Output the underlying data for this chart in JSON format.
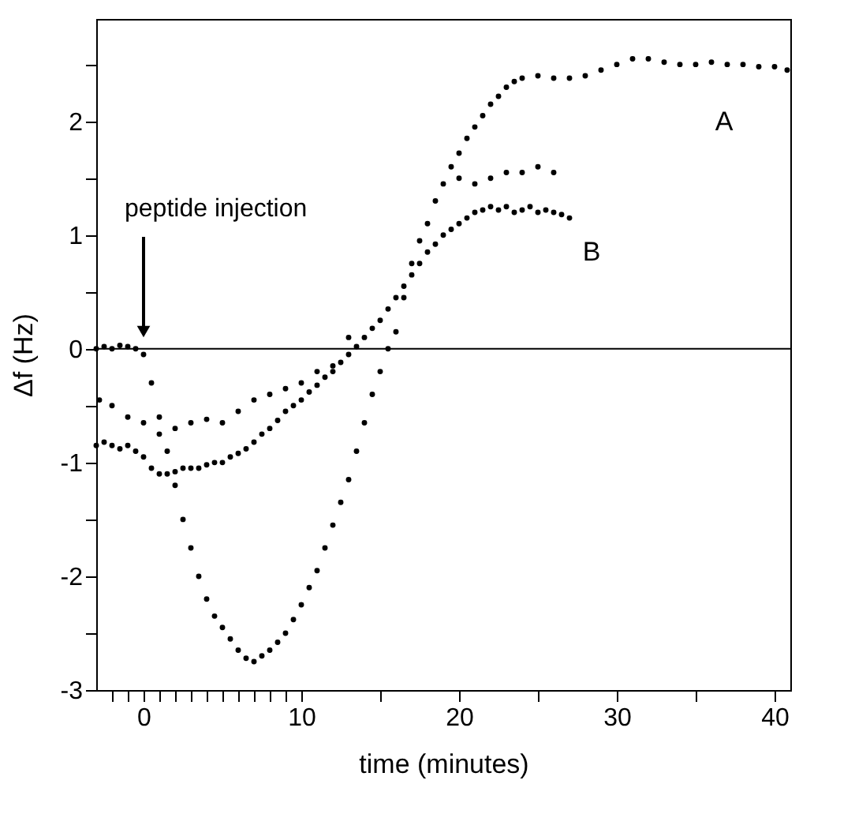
{
  "chart_data": {
    "type": "scatter",
    "xlabel": "time (minutes)",
    "ylabel": "Δf (Hz)",
    "xlim": [
      -3,
      41
    ],
    "ylim": [
      -3,
      2.9
    ],
    "xticks": [
      {
        "value": -2,
        "label": null
      },
      {
        "value": -1,
        "label": null
      },
      0,
      {
        "value": 1,
        "label": null
      },
      {
        "value": 2,
        "label": null
      },
      {
        "value": 3,
        "label": null
      },
      {
        "value": 4,
        "label": null
      },
      {
        "value": 5,
        "label": null
      },
      {
        "value": 6,
        "label": null
      },
      {
        "value": 7,
        "label": null
      },
      {
        "value": 8,
        "label": null
      },
      {
        "value": 9,
        "label": null
      },
      10,
      {
        "value": 15,
        "label": null
      },
      20,
      {
        "value": 25,
        "label": null
      },
      30,
      {
        "value": 35,
        "label": null
      },
      40
    ],
    "yticks": [
      -3,
      {
        "value": -2.5,
        "label": null
      },
      -2,
      {
        "value": -1.5,
        "label": null
      },
      -1,
      {
        "value": -0.5,
        "label": null
      },
      0,
      {
        "value": 0.5,
        "label": null
      },
      1,
      {
        "value": 1.5,
        "label": null
      },
      2,
      {
        "value": 2.5,
        "label": null
      }
    ],
    "grid": false,
    "legend": false,
    "marker": "circle",
    "ref_lines": [
      {
        "axis": "y",
        "value": 0,
        "color": "#000000"
      }
    ],
    "annotations": [
      "peptide injection"
    ],
    "series": [
      {
        "name": "A",
        "color": "#000000",
        "x": [
          -3,
          -2.5,
          -2,
          -1.5,
          -1,
          -0.5,
          0,
          0.5,
          1,
          1.5,
          2,
          2.5,
          3,
          3.5,
          4,
          4.5,
          5,
          5.5,
          6,
          6.5,
          7,
          7.5,
          8,
          8.5,
          9,
          9.5,
          10,
          10.5,
          11,
          11.5,
          12,
          12.5,
          13,
          13.5,
          14,
          14.5,
          15,
          15.5,
          16,
          16.5,
          17,
          17.5,
          18,
          18.5,
          19,
          19.5,
          20,
          20.5,
          21,
          21.5,
          22,
          22.5,
          23,
          23.5,
          24,
          25,
          26,
          27,
          28,
          29,
          30,
          31,
          32,
          33,
          34,
          35,
          36,
          37,
          38,
          39,
          40,
          40.8
        ],
        "values": [
          0.0,
          0.02,
          0.0,
          0.03,
          0.02,
          0.0,
          -0.05,
          -0.3,
          -0.6,
          -0.9,
          -1.2,
          -1.5,
          -1.75,
          -2.0,
          -2.2,
          -2.35,
          -2.45,
          -2.55,
          -2.65,
          -2.72,
          -2.75,
          -2.7,
          -2.65,
          -2.58,
          -2.5,
          -2.38,
          -2.25,
          -2.1,
          -1.95,
          -1.75,
          -1.55,
          -1.35,
          -1.15,
          -0.9,
          -0.65,
          -0.4,
          -0.2,
          0.0,
          0.15,
          0.45,
          0.75,
          0.95,
          1.1,
          1.3,
          1.45,
          1.6,
          1.72,
          1.85,
          1.95,
          2.05,
          2.15,
          2.22,
          2.3,
          2.35,
          2.38,
          2.4,
          2.38,
          2.38,
          2.4,
          2.45,
          2.5,
          2.55,
          2.55,
          2.52,
          2.5,
          2.5,
          2.52,
          2.5,
          2.5,
          2.48,
          2.48,
          2.45
        ]
      },
      {
        "name": "B",
        "color": "#000000",
        "x": [
          -3,
          -2.5,
          -2,
          -1.5,
          -1,
          -0.5,
          0,
          0.5,
          1,
          1.5,
          2,
          2.5,
          3,
          3.5,
          4,
          4.5,
          5,
          5.5,
          6,
          6.5,
          7,
          7.5,
          8,
          8.5,
          9,
          9.5,
          10,
          10.5,
          11,
          11.5,
          12,
          12.5,
          13,
          13.5,
          14,
          14.5,
          15,
          15.5,
          16,
          16.5,
          17,
          17.5,
          18,
          18.5,
          19,
          19.5,
          20,
          20.5,
          21,
          21.5,
          22,
          22.5,
          23,
          23.5,
          24,
          24.5,
          25,
          25.5,
          26,
          26.5,
          27
        ],
        "values": [
          -0.85,
          -0.82,
          -0.85,
          -0.88,
          -0.85,
          -0.9,
          -0.95,
          -1.05,
          -1.1,
          -1.1,
          -1.08,
          -1.05,
          -1.05,
          -1.05,
          -1.02,
          -1.0,
          -1.0,
          -0.95,
          -0.92,
          -0.88,
          -0.82,
          -0.75,
          -0.7,
          -0.63,
          -0.55,
          -0.5,
          -0.45,
          -0.38,
          -0.32,
          -0.25,
          -0.2,
          -0.12,
          -0.05,
          0.02,
          0.1,
          0.18,
          0.25,
          0.35,
          0.45,
          0.55,
          0.65,
          0.75,
          0.85,
          0.92,
          1.0,
          1.05,
          1.1,
          1.15,
          1.2,
          1.22,
          1.25,
          1.22,
          1.25,
          1.2,
          1.22,
          1.25,
          1.2,
          1.22,
          1.2,
          1.18,
          1.15
        ]
      },
      {
        "color": "#000000",
        "x": [
          -2.8,
          -2,
          -1,
          0,
          1,
          2,
          3,
          4,
          5,
          6,
          7,
          8,
          9,
          10,
          11,
          12,
          13,
          20,
          21,
          22,
          23,
          24,
          25,
          26
        ],
        "values": [
          -0.45,
          -0.5,
          -0.6,
          -0.65,
          -0.75,
          -0.7,
          -0.65,
          -0.62,
          -0.65,
          -0.55,
          -0.45,
          -0.4,
          -0.35,
          -0.3,
          -0.2,
          -0.15,
          0.1,
          1.5,
          1.45,
          1.5,
          1.55,
          1.55,
          1.6,
          1.55
        ]
      }
    ]
  }
}
